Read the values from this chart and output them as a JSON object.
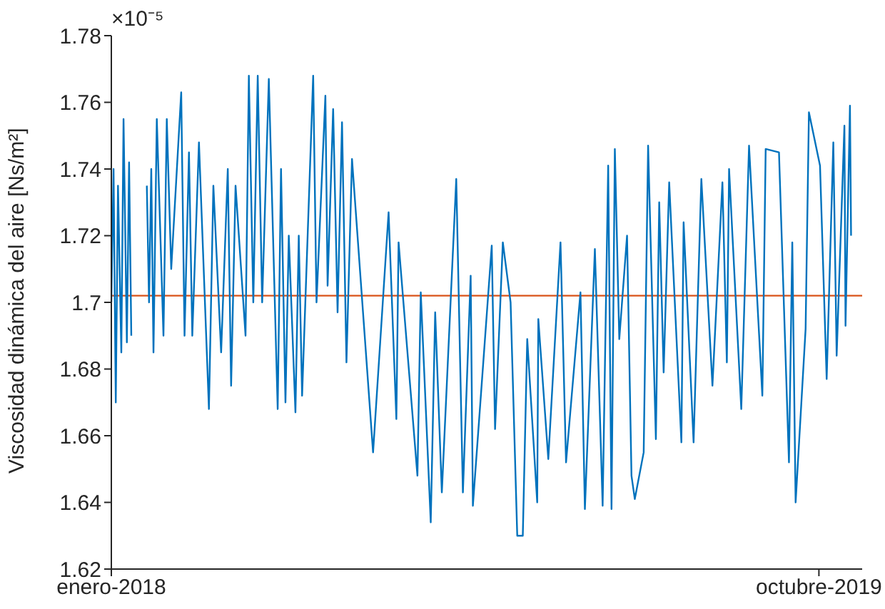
{
  "chart_data": {
    "type": "line",
    "ylabel": "Viscosidad dinámica del aire [Ns/m²]",
    "annotations": [
      "×10⁻⁵"
    ],
    "x": [
      "2018-01-01",
      "2018-01-03",
      "2018-01-05",
      "2018-01-07",
      "2018-01-10",
      "2018-01-12",
      "2018-01-15",
      "2018-01-17",
      "2018-01-19",
      "2018-01-26",
      "2018-02-02",
      "2018-02-04",
      "2018-02-06",
      "2018-02-08",
      "2018-02-11",
      "2018-02-17",
      "2018-02-20",
      "2018-02-24",
      "2018-03-05",
      "2018-03-08",
      "2018-03-12",
      "2018-03-15",
      "2018-03-21",
      "2018-03-30",
      "2018-04-03",
      "2018-04-10",
      "2018-04-16",
      "2018-04-19",
      "2018-04-23",
      "2018-05-02",
      "2018-05-05",
      "2018-05-09",
      "2018-05-13",
      "2018-05-17",
      "2018-05-23",
      "2018-05-31",
      "2018-06-03",
      "2018-06-07",
      "2018-06-10",
      "2018-06-16",
      "2018-06-19",
      "2018-06-22",
      "2018-07-02",
      "2018-07-05",
      "2018-07-13",
      "2018-07-15",
      "2018-07-20",
      "2018-07-24",
      "2018-07-28",
      "2018-08-01",
      "2018-08-06",
      "2018-08-25",
      "2018-09-08",
      "2018-09-15",
      "2018-09-17",
      "2018-10-04",
      "2018-10-07",
      "2018-10-16",
      "2018-10-20",
      "2018-10-26",
      "2018-11-08",
      "2018-11-14",
      "2018-11-21",
      "2018-11-23",
      "2018-12-10",
      "2018-12-13",
      "2018-12-20",
      "2018-12-27",
      "2019-01-02",
      "2019-01-07",
      "2019-01-11",
      "2019-01-20",
      "2019-01-21",
      "2019-01-30",
      "2019-02-10",
      "2019-02-15",
      "2019-02-28",
      "2019-03-04",
      "2019-03-13",
      "2019-03-20",
      "2019-03-25",
      "2019-03-28",
      "2019-03-31",
      "2019-04-04",
      "2019-04-11",
      "2019-04-15",
      "2019-04-18",
      "2019-04-26",
      "2019-04-30",
      "2019-05-07",
      "2019-05-10",
      "2019-05-14",
      "2019-05-19",
      "2019-05-30",
      "2019-06-01",
      "2019-06-10",
      "2019-06-17",
      "2019-06-27",
      "2019-07-06",
      "2019-07-10",
      "2019-07-12",
      "2019-07-23",
      "2019-07-30",
      "2019-08-11",
      "2019-08-14",
      "2019-08-26",
      "2019-09-04",
      "2019-09-07",
      "2019-09-10",
      "2019-09-19",
      "2019-09-22",
      "2019-10-02",
      "2019-10-08",
      "2019-10-14",
      "2019-10-17",
      "2019-10-24",
      "2019-10-25",
      "2019-10-29",
      "2019-10-30"
    ],
    "series": [
      {
        "color": "#0072bd",
        "values": [
          1.7,
          1.74,
          1.67,
          1.735,
          1.685,
          1.755,
          1.688,
          1.742,
          1.69,
          null,
          1.735,
          1.7,
          1.74,
          1.685,
          1.755,
          1.69,
          1.755,
          1.71,
          1.763,
          1.69,
          1.745,
          1.69,
          1.748,
          1.668,
          1.735,
          1.685,
          1.74,
          1.675,
          1.735,
          1.69,
          1.768,
          1.7,
          1.768,
          1.7,
          1.767,
          1.668,
          1.74,
          1.67,
          1.72,
          1.667,
          1.72,
          1.672,
          1.768,
          1.7,
          1.762,
          1.705,
          1.758,
          1.697,
          1.754,
          1.682,
          1.743,
          1.655,
          1.727,
          1.665,
          1.718,
          1.648,
          1.703,
          1.634,
          1.697,
          1.643,
          1.737,
          1.643,
          1.708,
          1.639,
          1.717,
          1.662,
          1.718,
          1.7,
          1.63,
          1.63,
          1.689,
          1.64,
          1.695,
          1.653,
          1.718,
          1.652,
          1.703,
          1.638,
          1.716,
          1.639,
          1.741,
          1.638,
          1.746,
          1.689,
          1.72,
          1.648,
          1.641,
          1.655,
          1.747,
          1.659,
          1.73,
          1.679,
          1.736,
          1.658,
          1.724,
          1.658,
          1.737,
          1.675,
          1.736,
          1.682,
          1.74,
          1.668,
          1.747,
          1.672,
          1.746,
          1.745,
          1.652,
          1.718,
          1.64,
          1.692,
          1.757,
          1.741,
          1.677,
          1.748,
          1.684,
          1.753,
          1.693,
          1.759,
          1.72
        ]
      }
    ],
    "xlim": [
      "2018-01-01",
      "2019-11-09"
    ],
    "xticks": [
      {
        "value": "2018-01-01",
        "label": "enero-2018"
      },
      {
        "value": "2019-10-01",
        "label": "octubre-2019"
      }
    ],
    "ylim": [
      1.62,
      1.78
    ],
    "yticks": [
      1.62,
      1.64,
      1.66,
      1.68,
      1.7,
      1.72,
      1.74,
      1.76,
      1.78
    ],
    "ref_lines": [
      {
        "axis": "y",
        "value": 1.702,
        "color": "#d95319"
      }
    ],
    "grid": false,
    "legend": false,
    "marker": "none",
    "line_style": "solid"
  }
}
